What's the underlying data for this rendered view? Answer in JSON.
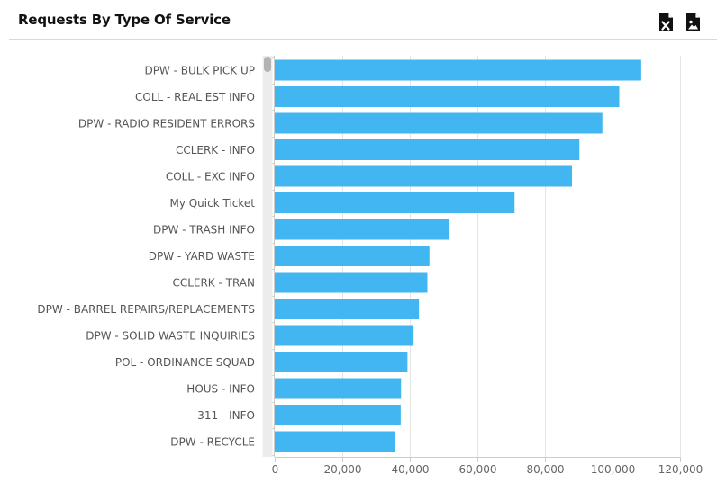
{
  "header": {
    "title": "Requests By Type Of Service",
    "export_excel_icon": "file-excel-icon",
    "export_image_icon": "file-image-icon"
  },
  "chart_data": {
    "type": "bar",
    "orientation": "horizontal",
    "categories": [
      "DPW - BULK PICK UP",
      "COLL - REAL EST INFO",
      "DPW - RADIO RESIDENT ERRORS",
      "CCLERK - INFO",
      "COLL - EXC INFO",
      "My Quick Ticket",
      "DPW - TRASH INFO",
      "DPW - YARD WASTE",
      "CCLERK - TRAN",
      "DPW - BARREL REPAIRS/REPLACEMENTS",
      "DPW - SOLID WASTE INQUIRIES",
      "POL - ORDINANCE SQUAD",
      "HOUS - INFO",
      "311 - INFO",
      "DPW - RECYCLE"
    ],
    "values": [
      108500,
      102000,
      97000,
      90200,
      88000,
      71000,
      51700,
      45800,
      45200,
      42700,
      41100,
      39300,
      37400,
      37300,
      35600
    ],
    "xlim": [
      0,
      120000
    ],
    "xticks": [
      0,
      20000,
      40000,
      60000,
      80000,
      100000,
      120000
    ],
    "xtick_labels": [
      "0",
      "20,000",
      "40,000",
      "60,000",
      "80,000",
      "100,000",
      "120,000"
    ],
    "grid": "vertical",
    "bar_color": "#42b6f0",
    "grid_color": "#e4e4e4",
    "axis_color": "#cccccc",
    "scrollbar_color": "#b3b3b3"
  }
}
